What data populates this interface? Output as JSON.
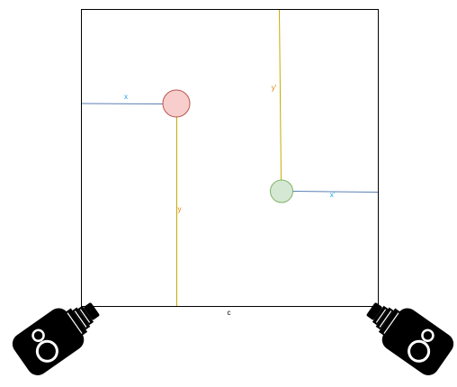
{
  "colors": {
    "frame": "#000000",
    "x_line": "#5b7fb5",
    "y_line": "#c9a900",
    "x_label": "#1ba1e2",
    "y_label": "#e07b00",
    "red_fill": "#f8cecc",
    "red_stroke": "#b85450",
    "green_fill": "#d5e8d4",
    "green_stroke": "#82b366",
    "camera": "#000000",
    "camera_detail": "#ffffff"
  },
  "labels": {
    "x1": "x",
    "y1": "y",
    "y2": "y'",
    "x2": "x'",
    "bottom": "c"
  },
  "icons": {
    "camera_left": "camera-icon",
    "camera_right": "camera-icon"
  }
}
